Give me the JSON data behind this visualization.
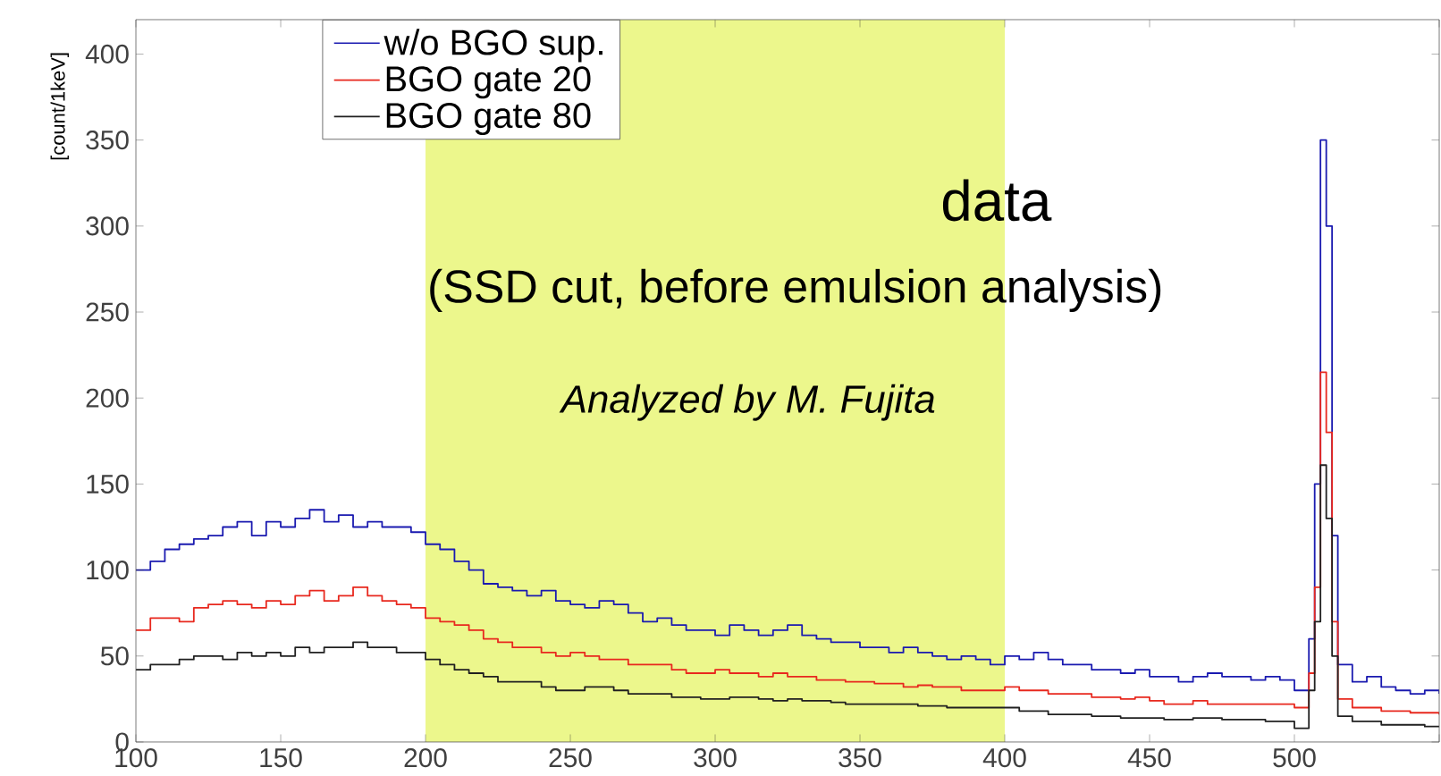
{
  "chart_data": {
    "type": "step",
    "ylabel": "[count/1keV]",
    "annotations": [
      "data",
      "(SSD cut, before emulsion analysis)",
      "*Analyzed by M. Fujita*"
    ],
    "xlim": [
      100,
      550
    ],
    "ylim": [
      0,
      420
    ],
    "xticks": [
      100,
      150,
      200,
      250,
      300,
      350,
      400,
      450,
      500,
      {
        "value": 550,
        "label": null
      }
    ],
    "yticks": [
      0,
      50,
      100,
      150,
      200,
      250,
      300,
      350,
      400
    ],
    "legend": "top left",
    "marker": "none",
    "line_style": "solid",
    "bands": [
      {
        "axis": "x",
        "from": 200,
        "to": 400,
        "label": null,
        "color": "#ecf78c"
      }
    ],
    "x": [
      100,
      105,
      110,
      115,
      120,
      125,
      130,
      135,
      140,
      145,
      150,
      155,
      160,
      165,
      170,
      175,
      180,
      185,
      190,
      195,
      200,
      205,
      210,
      215,
      220,
      225,
      230,
      235,
      240,
      245,
      250,
      255,
      260,
      265,
      270,
      275,
      280,
      285,
      290,
      295,
      300,
      305,
      310,
      315,
      320,
      325,
      330,
      335,
      340,
      345,
      350,
      355,
      360,
      365,
      370,
      375,
      380,
      385,
      390,
      395,
      400,
      405,
      410,
      415,
      420,
      425,
      430,
      435,
      440,
      445,
      450,
      455,
      460,
      465,
      470,
      475,
      480,
      485,
      490,
      495,
      500,
      505,
      507,
      509,
      511,
      513,
      515,
      520,
      525,
      530,
      535,
      540,
      545,
      550
    ],
    "series": [
      {
        "name": "w/o BGO sup.",
        "color": "#1a1ab0",
        "values": [
          100,
          105,
          112,
          115,
          118,
          120,
          125,
          128,
          120,
          128,
          125,
          130,
          135,
          128,
          132,
          125,
          128,
          125,
          125,
          122,
          115,
          112,
          105,
          100,
          92,
          90,
          88,
          85,
          88,
          82,
          80,
          78,
          82,
          80,
          75,
          70,
          72,
          68,
          65,
          65,
          62,
          68,
          65,
          62,
          65,
          68,
          62,
          60,
          58,
          58,
          55,
          55,
          52,
          55,
          52,
          50,
          48,
          50,
          48,
          45,
          50,
          48,
          52,
          48,
          45,
          45,
          42,
          42,
          40,
          42,
          38,
          38,
          35,
          38,
          40,
          38,
          38,
          36,
          38,
          36,
          30,
          60,
          150,
          350,
          300,
          120,
          45,
          35,
          38,
          32,
          30,
          28,
          30,
          28
        ]
      },
      {
        "name": "BGO gate 20",
        "color": "#e8281e",
        "values": [
          65,
          72,
          72,
          70,
          78,
          80,
          82,
          80,
          78,
          82,
          80,
          85,
          88,
          82,
          85,
          90,
          85,
          82,
          80,
          78,
          72,
          70,
          68,
          65,
          60,
          58,
          55,
          55,
          52,
          50,
          52,
          50,
          48,
          48,
          45,
          45,
          45,
          42,
          40,
          40,
          42,
          40,
          40,
          38,
          40,
          38,
          38,
          36,
          36,
          35,
          35,
          34,
          34,
          32,
          33,
          32,
          32,
          30,
          30,
          30,
          32,
          30,
          30,
          28,
          28,
          28,
          26,
          26,
          25,
          26,
          24,
          22,
          22,
          24,
          22,
          22,
          22,
          22,
          22,
          22,
          20,
          40,
          90,
          215,
          180,
          70,
          25,
          20,
          20,
          18,
          18,
          17,
          17,
          16
        ]
      },
      {
        "name": "BGO gate 80",
        "color": "#202020",
        "values": [
          42,
          45,
          45,
          48,
          50,
          50,
          48,
          52,
          50,
          52,
          50,
          55,
          52,
          55,
          55,
          58,
          55,
          55,
          52,
          52,
          48,
          45,
          42,
          40,
          38,
          35,
          35,
          35,
          32,
          30,
          30,
          32,
          32,
          30,
          28,
          28,
          28,
          26,
          26,
          25,
          25,
          26,
          26,
          25,
          24,
          25,
          24,
          24,
          23,
          22,
          22,
          22,
          22,
          22,
          21,
          21,
          20,
          20,
          20,
          20,
          20,
          18,
          18,
          16,
          16,
          16,
          15,
          15,
          14,
          14,
          14,
          13,
          13,
          14,
          14,
          13,
          13,
          13,
          12,
          12,
          8,
          30,
          70,
          161,
          130,
          50,
          15,
          12,
          12,
          10,
          10,
          10,
          9,
          9
        ]
      }
    ]
  }
}
